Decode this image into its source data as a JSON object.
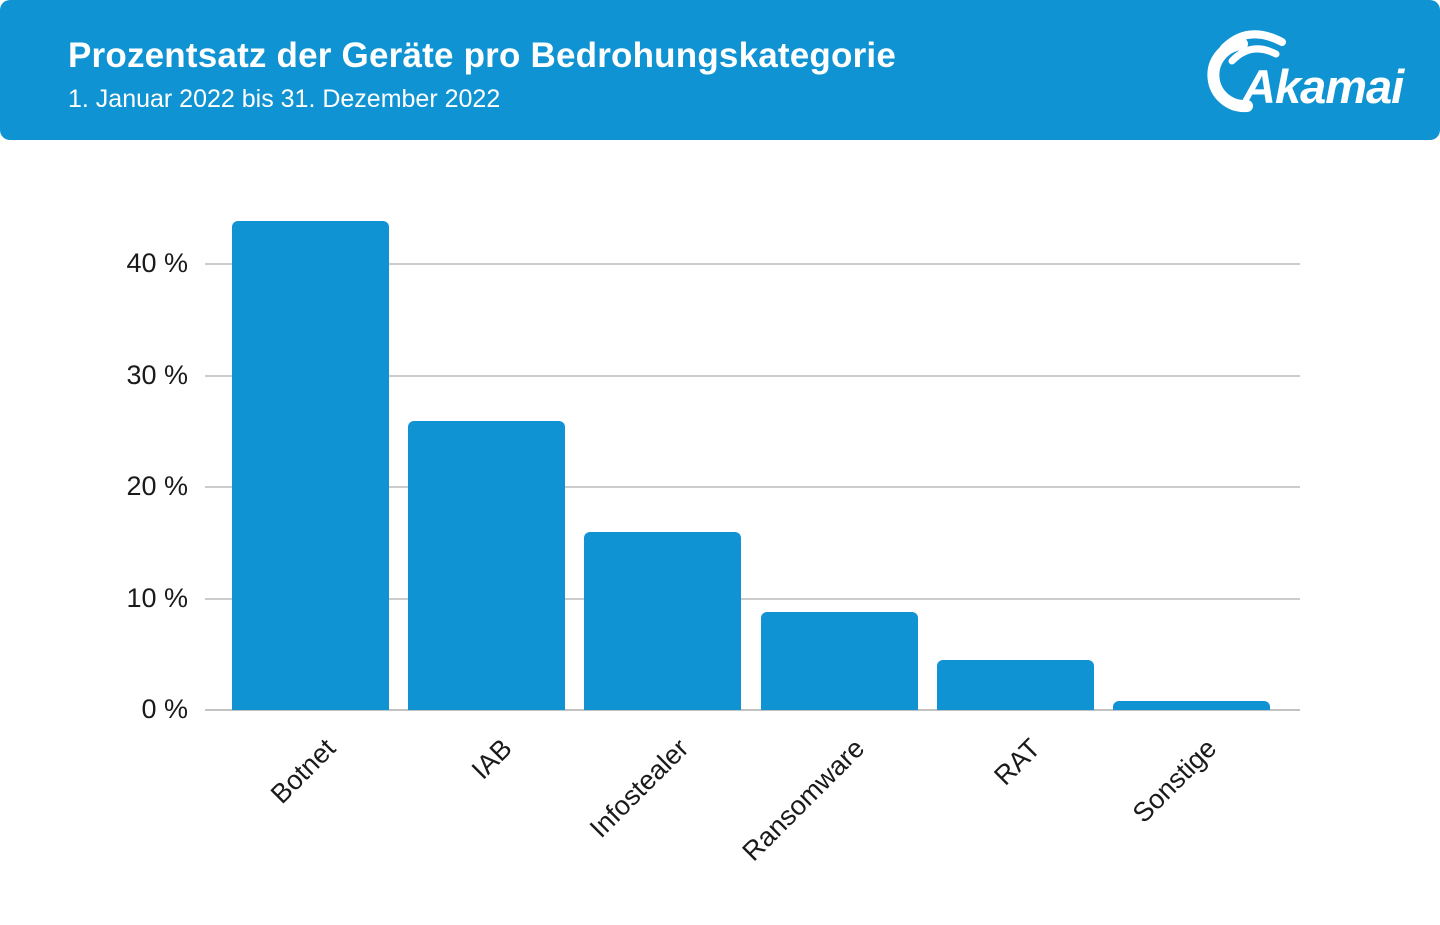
{
  "header": {
    "title": "Prozentsatz der Geräte pro Bedrohungskategorie",
    "subtitle": "1. Januar 2022 bis 31. Dezember 2022",
    "logo_text": "Akamai",
    "background_color": "#0f93d2",
    "text_color": "#ffffff"
  },
  "chart_data": {
    "type": "bar",
    "title": "Prozentsatz der Geräte pro Bedrohungskategorie",
    "subtitle": "1. Januar 2022 bis 31. Dezember 2022",
    "categories": [
      "Botnet",
      "IAB",
      "Infostealer",
      "Ransomware",
      "RAT",
      "Sonstige"
    ],
    "values": [
      43.9,
      25.9,
      16.0,
      8.8,
      4.5,
      0.8
    ],
    "xlabel": "",
    "ylabel": "",
    "ylim": [
      0,
      45
    ],
    "y_ticks": [
      {
        "value": 40,
        "label": "40 %"
      },
      {
        "value": 30,
        "label": "30 %"
      },
      {
        "value": 20,
        "label": "20 %"
      },
      {
        "value": 10,
        "label": "10 %"
      },
      {
        "value": 0,
        "label": "0 %"
      }
    ],
    "grid": true,
    "legend": "none",
    "bar_color": "#0f93d2",
    "gridline_color": "#cccccc",
    "label_color": "#1a1a1a"
  }
}
